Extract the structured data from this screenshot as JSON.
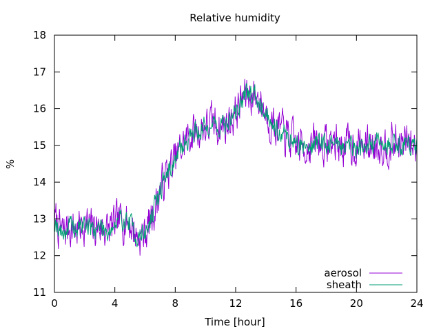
{
  "chart_data": {
    "type": "line",
    "title": "Relative humidity",
    "xlabel": "Time [hour]",
    "ylabel": "%",
    "xlim": [
      0,
      24
    ],
    "ylim": [
      11,
      18
    ],
    "xticks": [
      0,
      4,
      8,
      12,
      16,
      20,
      24
    ],
    "yticks": [
      11,
      12,
      13,
      14,
      15,
      16,
      17,
      18
    ],
    "grid": false,
    "legend_position": "bottom-right",
    "anchors": [
      [
        0,
        13.0
      ],
      [
        0.5,
        12.6
      ],
      [
        1,
        12.8
      ],
      [
        1.5,
        12.7
      ],
      [
        2,
        12.9
      ],
      [
        2.5,
        12.7
      ],
      [
        3,
        12.8
      ],
      [
        3.5,
        12.7
      ],
      [
        4,
        12.8
      ],
      [
        4.5,
        13.0
      ],
      [
        5,
        12.9
      ],
      [
        5.5,
        12.5
      ],
      [
        6,
        12.6
      ],
      [
        6.5,
        13.1
      ],
      [
        7,
        13.8
      ],
      [
        7.5,
        14.3
      ],
      [
        8,
        14.6
      ],
      [
        8.5,
        15.0
      ],
      [
        9,
        15.3
      ],
      [
        9.5,
        15.4
      ],
      [
        10,
        15.5
      ],
      [
        10.5,
        15.6
      ],
      [
        11,
        15.5
      ],
      [
        11.5,
        15.6
      ],
      [
        12,
        15.9
      ],
      [
        12.5,
        16.3
      ],
      [
        13,
        16.4
      ],
      [
        13.5,
        16.3
      ],
      [
        14,
        15.9
      ],
      [
        14.5,
        15.6
      ],
      [
        15,
        15.4
      ],
      [
        15.5,
        15.2
      ],
      [
        16,
        15.0
      ],
      [
        16.5,
        15.0
      ],
      [
        17,
        15.0
      ],
      [
        17.5,
        15.1
      ],
      [
        18,
        15.0
      ],
      [
        18.5,
        15.1
      ],
      [
        19,
        15.0
      ],
      [
        19.5,
        15.0
      ],
      [
        20,
        15.0
      ],
      [
        20.5,
        15.0
      ],
      [
        21,
        15.0
      ],
      [
        21.5,
        15.1
      ],
      [
        22,
        15.0
      ],
      [
        22.5,
        15.1
      ],
      [
        23,
        15.0
      ],
      [
        23.5,
        15.1
      ],
      [
        24,
        14.9
      ]
    ],
    "series": [
      {
        "name": "aerosol",
        "color": "#9400d3",
        "noise": 0.52,
        "seed": 7
      },
      {
        "name": "sheath",
        "color": "#009e73",
        "noise": 0.28,
        "seed": 19
      }
    ]
  }
}
